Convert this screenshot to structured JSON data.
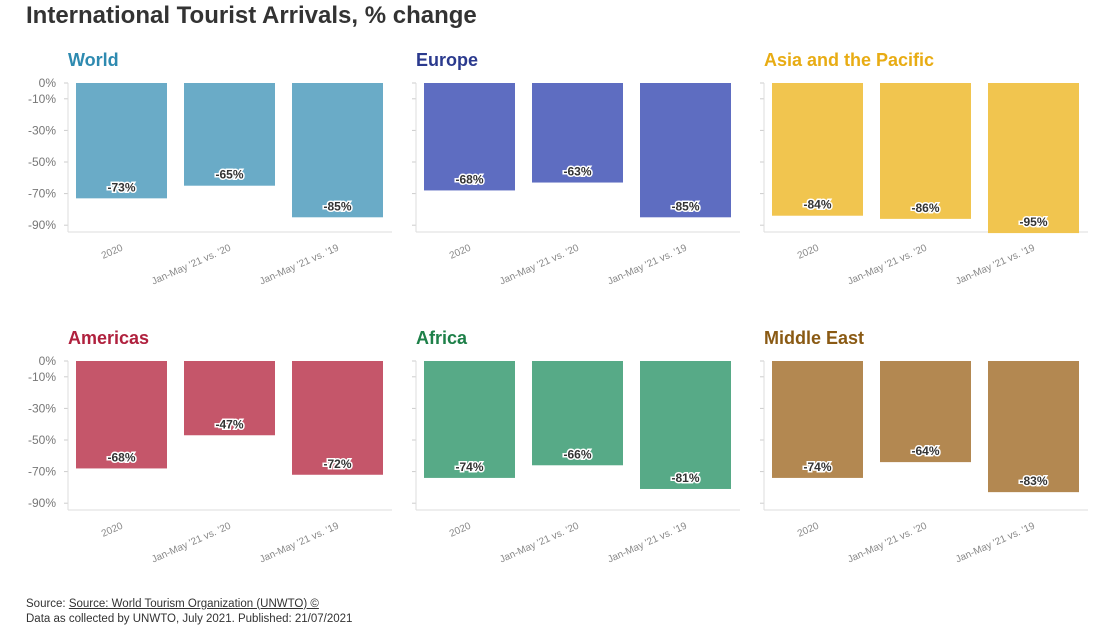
{
  "title": "International Tourist Arrivals, % change",
  "footer": {
    "source_prefix": "Source: ",
    "source_link": "Source: World Tourism Organization (UNWTO) ©",
    "note": "Data as collected by UNWTO, July 2021. Published: 21/07/2021"
  },
  "chart_data": [
    {
      "type": "bar",
      "title": "World",
      "title_color": "#2E8AB0",
      "bar_color": "#6AABC7",
      "categories": [
        "2020",
        "Jan-May '21 vs. '20",
        "Jan-May '21 vs. '19"
      ],
      "values": [
        -73,
        -65,
        -85
      ],
      "data_labels": [
        "-73%",
        "-65%",
        "-85%"
      ],
      "yticks": [
        0,
        -10,
        -30,
        -50,
        -70,
        -90
      ],
      "ytick_labels": [
        "0%",
        "-10%",
        "-30%",
        "-50%",
        "-70%",
        "-90%"
      ],
      "ylim": [
        -95,
        0
      ],
      "grid": false
    },
    {
      "type": "bar",
      "title": "Europe",
      "title_color": "#2B3A8E",
      "bar_color": "#5E6DC1",
      "categories": [
        "2020",
        "Jan-May '21 vs. '20",
        "Jan-May '21 vs. '19"
      ],
      "values": [
        -68,
        -63,
        -85
      ],
      "data_labels": [
        "-68%",
        "-63%",
        "-85%"
      ],
      "yticks": [
        0,
        -10,
        -30,
        -50,
        -70,
        -90
      ],
      "ytick_labels": [],
      "ylim": [
        -95,
        0
      ],
      "grid": false
    },
    {
      "type": "bar",
      "title": "Asia and the Pacific",
      "title_color": "#E8AC14",
      "bar_color": "#F1C54F",
      "categories": [
        "2020",
        "Jan-May '21 vs. '20",
        "Jan-May '21 vs. '19"
      ],
      "values": [
        -84,
        -86,
        -95
      ],
      "data_labels": [
        "-84%",
        "-86%",
        "-95%"
      ],
      "yticks": [
        0,
        -10,
        -30,
        -50,
        -70,
        -90
      ],
      "ytick_labels": [],
      "ylim": [
        -95,
        0
      ],
      "grid": false
    },
    {
      "type": "bar",
      "title": "Americas",
      "title_color": "#B0213E",
      "bar_color": "#C5566A",
      "categories": [
        "2020",
        "Jan-May '21 vs. '20",
        "Jan-May '21 vs. '19"
      ],
      "values": [
        -68,
        -47,
        -72
      ],
      "data_labels": [
        "-68%",
        "-47%",
        "-72%"
      ],
      "yticks": [
        0,
        -10,
        -30,
        -50,
        -70,
        -90
      ],
      "ytick_labels": [
        "0%",
        "-10%",
        "-30%",
        "-50%",
        "-70%",
        "-90%"
      ],
      "ylim": [
        -95,
        0
      ],
      "grid": false
    },
    {
      "type": "bar",
      "title": "Africa",
      "title_color": "#1E8049",
      "bar_color": "#57AA87",
      "categories": [
        "2020",
        "Jan-May '21 vs. '20",
        "Jan-May '21 vs. '19"
      ],
      "values": [
        -74,
        -66,
        -81
      ],
      "data_labels": [
        "-74%",
        "-66%",
        "-81%"
      ],
      "yticks": [
        0,
        -10,
        -30,
        -50,
        -70,
        -90
      ],
      "ytick_labels": [],
      "ylim": [
        -95,
        0
      ],
      "grid": false
    },
    {
      "type": "bar",
      "title": "Middle East",
      "title_color": "#8A5A14",
      "bar_color": "#B38851",
      "categories": [
        "2020",
        "Jan-May '21 vs. '20",
        "Jan-May '21 vs. '19"
      ],
      "values": [
        -74,
        -64,
        -83
      ],
      "data_labels": [
        "-74%",
        "-64%",
        "-83%"
      ],
      "yticks": [
        0,
        -10,
        -30,
        -50,
        -70,
        -90
      ],
      "ytick_labels": [],
      "ylim": [
        -95,
        0
      ],
      "grid": false
    }
  ]
}
